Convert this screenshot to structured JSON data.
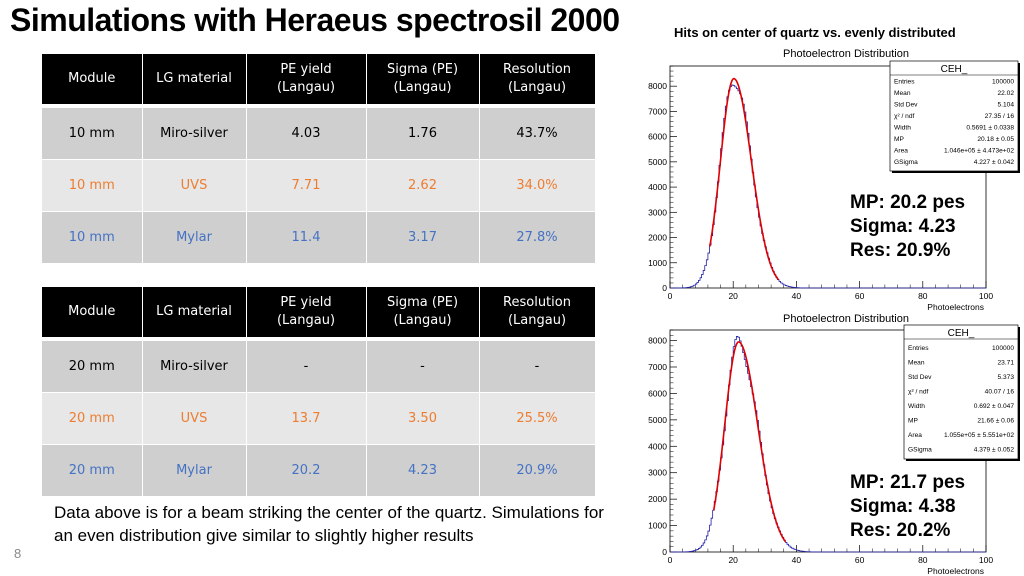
{
  "title": "Simulations with Heraeus spectrosil 2000",
  "subtitle": "Hits on center of quartz vs. evenly distributed",
  "tables": [
    {
      "headers": [
        [
          "Module"
        ],
        [
          "LG material"
        ],
        [
          "PE yield",
          "(Langau)"
        ],
        [
          "Sigma (PE)",
          "(Langau)"
        ],
        [
          "Resolution",
          "(Langau)"
        ]
      ],
      "rows": [
        [
          "10 mm",
          "Miro-silver",
          "4.03",
          "1.76",
          "43.7%"
        ],
        [
          "10 mm",
          "UVS",
          "7.71",
          "2.62",
          "34.0%"
        ],
        [
          "10 mm",
          "Mylar",
          "11.4",
          "3.17",
          "27.8%"
        ]
      ]
    },
    {
      "headers": [
        [
          "Module"
        ],
        [
          "LG material"
        ],
        [
          "PE yield",
          "(Langau)"
        ],
        [
          "Sigma (PE)",
          "(Langau)"
        ],
        [
          "Resolution",
          "(Langau)"
        ]
      ],
      "rows": [
        [
          "20 mm",
          "Miro-silver",
          "-",
          "-",
          "-"
        ],
        [
          "20 mm",
          "UVS",
          "13.7",
          "3.50",
          "25.5%"
        ],
        [
          "20 mm",
          "Mylar",
          "20.2",
          "4.23",
          "20.9%"
        ]
      ]
    }
  ],
  "note": "Data above is for a beam striking the center of the quartz. Simulations for an even distribution give similar to slightly higher results",
  "page_number": "8",
  "colors": {
    "uvs": "#ed7d31",
    "mylar": "#4472c4",
    "histogram": "#1f1fa8",
    "fit": "#e00000"
  },
  "chart_data": [
    {
      "type": "histogram",
      "title": "Photoelectron Distribution",
      "xlabel": "Photoelectrons",
      "xlim": [
        0,
        100
      ],
      "ylim": [
        0,
        8800
      ],
      "xticks": [
        0,
        20,
        40,
        60,
        80,
        100
      ],
      "yticks": [
        0,
        1000,
        2000,
        3000,
        4000,
        5000,
        6000,
        7000,
        8000
      ],
      "peak": {
        "x": 21.2,
        "y": 8300
      },
      "shape": {
        "mp": 20.2,
        "width": 0.57,
        "gsigma": 4.23,
        "area": 104600
      },
      "stats": {
        "name": "CEH_",
        "entries": [
          [
            "Entries",
            "100000"
          ],
          [
            "Mean",
            "22.02"
          ],
          [
            "Std Dev",
            "5.104"
          ],
          [
            "χ² / ndf",
            "27.35 / 16"
          ],
          [
            "Width",
            "0.5691 ± 0.0338"
          ],
          [
            "MP",
            "20.18 ± 0.05"
          ],
          [
            "Area",
            "1.046e+05 ± 4.473e+02"
          ],
          [
            "GSigma",
            "4.227 ± 0.042"
          ]
        ]
      },
      "annotation": [
        "MP: 20.2 pes",
        "Sigma: 4.23",
        "Res: 20.9%"
      ]
    },
    {
      "type": "histogram",
      "title": "Photoelectron Distribution",
      "xlabel": "Photoelectrons",
      "xlim": [
        0,
        100
      ],
      "ylim": [
        0,
        8400
      ],
      "xticks": [
        0,
        20,
        40,
        60,
        80,
        100
      ],
      "yticks": [
        0,
        1000,
        2000,
        3000,
        4000,
        5000,
        6000,
        7000,
        8000
      ],
      "peak": {
        "x": 22.7,
        "y": 7950
      },
      "shape": {
        "mp": 21.7,
        "width": 0.69,
        "gsigma": 4.38,
        "area": 105500
      },
      "stats": {
        "name": "CEH_",
        "entries": [
          [
            "Entries",
            "100000"
          ],
          [
            "Mean",
            "23.71"
          ],
          [
            "Std Dev",
            "5.373"
          ],
          [
            "χ² / ndf",
            "40.07 / 16"
          ],
          [
            "Width",
            "0.692 ± 0.047"
          ],
          [
            "MP",
            "21.66 ± 0.06"
          ],
          [
            "Area",
            "1.055e+05 ± 5.551e+02"
          ],
          [
            "GSigma",
            "4.379 ± 0.052"
          ]
        ]
      },
      "annotation": [
        "MP: 21.7 pes",
        "Sigma: 4.38",
        "Res: 20.2%"
      ]
    }
  ]
}
